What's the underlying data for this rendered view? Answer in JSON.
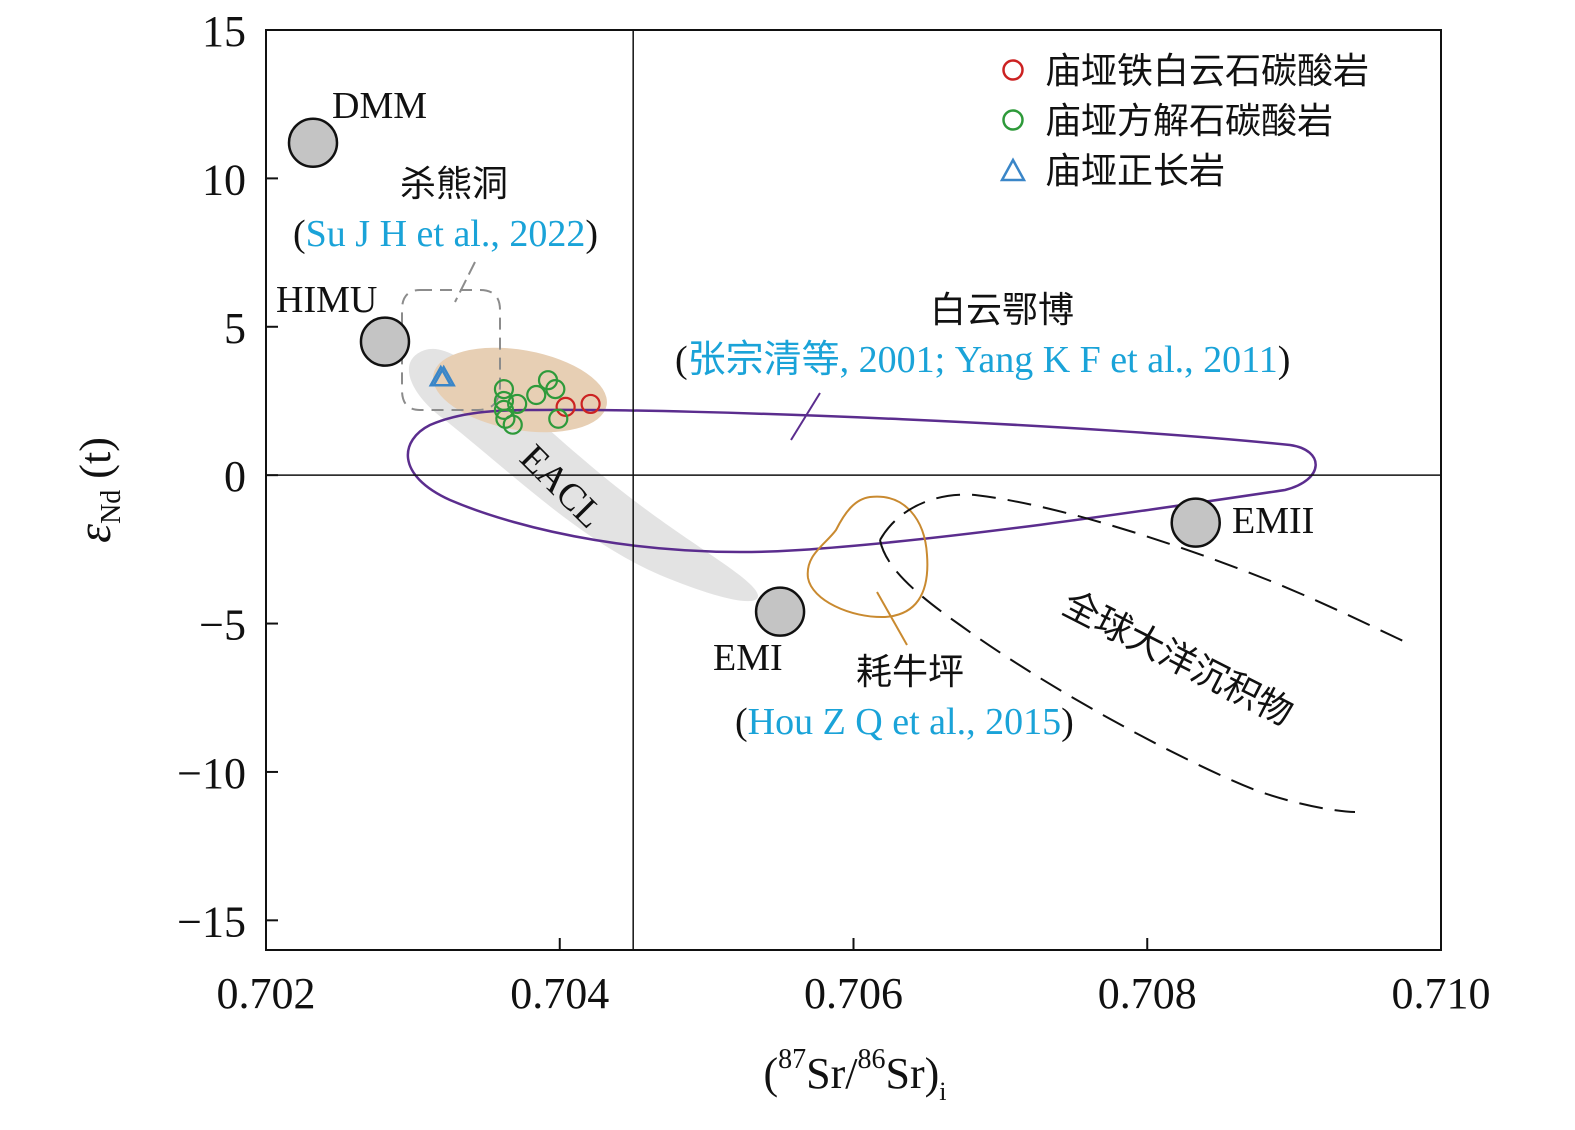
{
  "chart_data": {
    "type": "scatter",
    "xlabel_prefix": "(",
    "xlabel_sup1": "87",
    "xlabel_mid": "Sr/",
    "xlabel_sup2": "86",
    "xlabel_end": "Sr)",
    "xlabel_sub": "i",
    "ylabel_main": "ε",
    "ylabel_sub": "Nd",
    "ylabel_tail": " (t)",
    "xlim": [
      0.702,
      0.71
    ],
    "ylim": [
      -16,
      15
    ],
    "x_ticks": [
      {
        "value": 0.702,
        "label": "0.702"
      },
      {
        "value": 0.704,
        "label": "0.704"
      },
      {
        "value": 0.706,
        "label": "0.706"
      },
      {
        "value": 0.708,
        "label": "0.708"
      },
      {
        "value": 0.71,
        "label": "0.710"
      }
    ],
    "y_ticks": [
      {
        "value": 15,
        "label": "15"
      },
      {
        "value": 10,
        "label": "10"
      },
      {
        "value": 5,
        "label": "5"
      },
      {
        "value": 0,
        "label": "0"
      },
      {
        "value": -5,
        "label": "−5"
      },
      {
        "value": -10,
        "label": "−10"
      },
      {
        "value": -15,
        "label": "−15"
      }
    ],
    "reference_lines": {
      "vertical_x": 0.7045,
      "horizontal_y": 0
    },
    "series": [
      {
        "name": "庙垭铁白云石碳酸岩",
        "marker": "circle",
        "color": "#cc2222",
        "points": [
          [
            0.70404,
            2.3
          ],
          [
            0.70421,
            2.4
          ]
        ]
      },
      {
        "name": "庙垭方解石碳酸岩",
        "marker": "circle",
        "color": "#2e9a3a",
        "points": [
          [
            0.70362,
            2.9
          ],
          [
            0.70362,
            2.5
          ],
          [
            0.70362,
            2.2
          ],
          [
            0.70363,
            1.9
          ],
          [
            0.70368,
            1.7
          ],
          [
            0.70371,
            2.4
          ],
          [
            0.70384,
            2.7
          ],
          [
            0.70392,
            3.2
          ],
          [
            0.70397,
            2.9
          ],
          [
            0.70399,
            1.9
          ]
        ]
      },
      {
        "name": "庙垭正长岩",
        "marker": "triangle",
        "color": "#3a86c8",
        "points": [
          [
            0.70319,
            3.3
          ],
          [
            0.70321,
            3.3
          ]
        ]
      }
    ],
    "end_members": [
      {
        "name": "DMM",
        "x": 0.70232,
        "y": 11.2
      },
      {
        "name": "HIMU",
        "x": 0.70281,
        "y": 4.5
      },
      {
        "name": "EMI",
        "x": 0.7055,
        "y": -4.6
      },
      {
        "name": "EMII",
        "x": 0.70833,
        "y": -1.6
      }
    ],
    "fields": [
      {
        "name": "杀熊洞",
        "reference": "Su J H et al., 2022"
      },
      {
        "name": "白云鄂博",
        "reference": "张宗清等, 2001; Yang K F et al., 2011"
      },
      {
        "name": "耗牛坪",
        "reference": "Hou Z Q et al., 2015"
      },
      {
        "name": "EACL",
        "reference": ""
      },
      {
        "name": "全球大洋沉积物",
        "reference": ""
      }
    ],
    "legend_position": "top-right",
    "grid": false
  }
}
